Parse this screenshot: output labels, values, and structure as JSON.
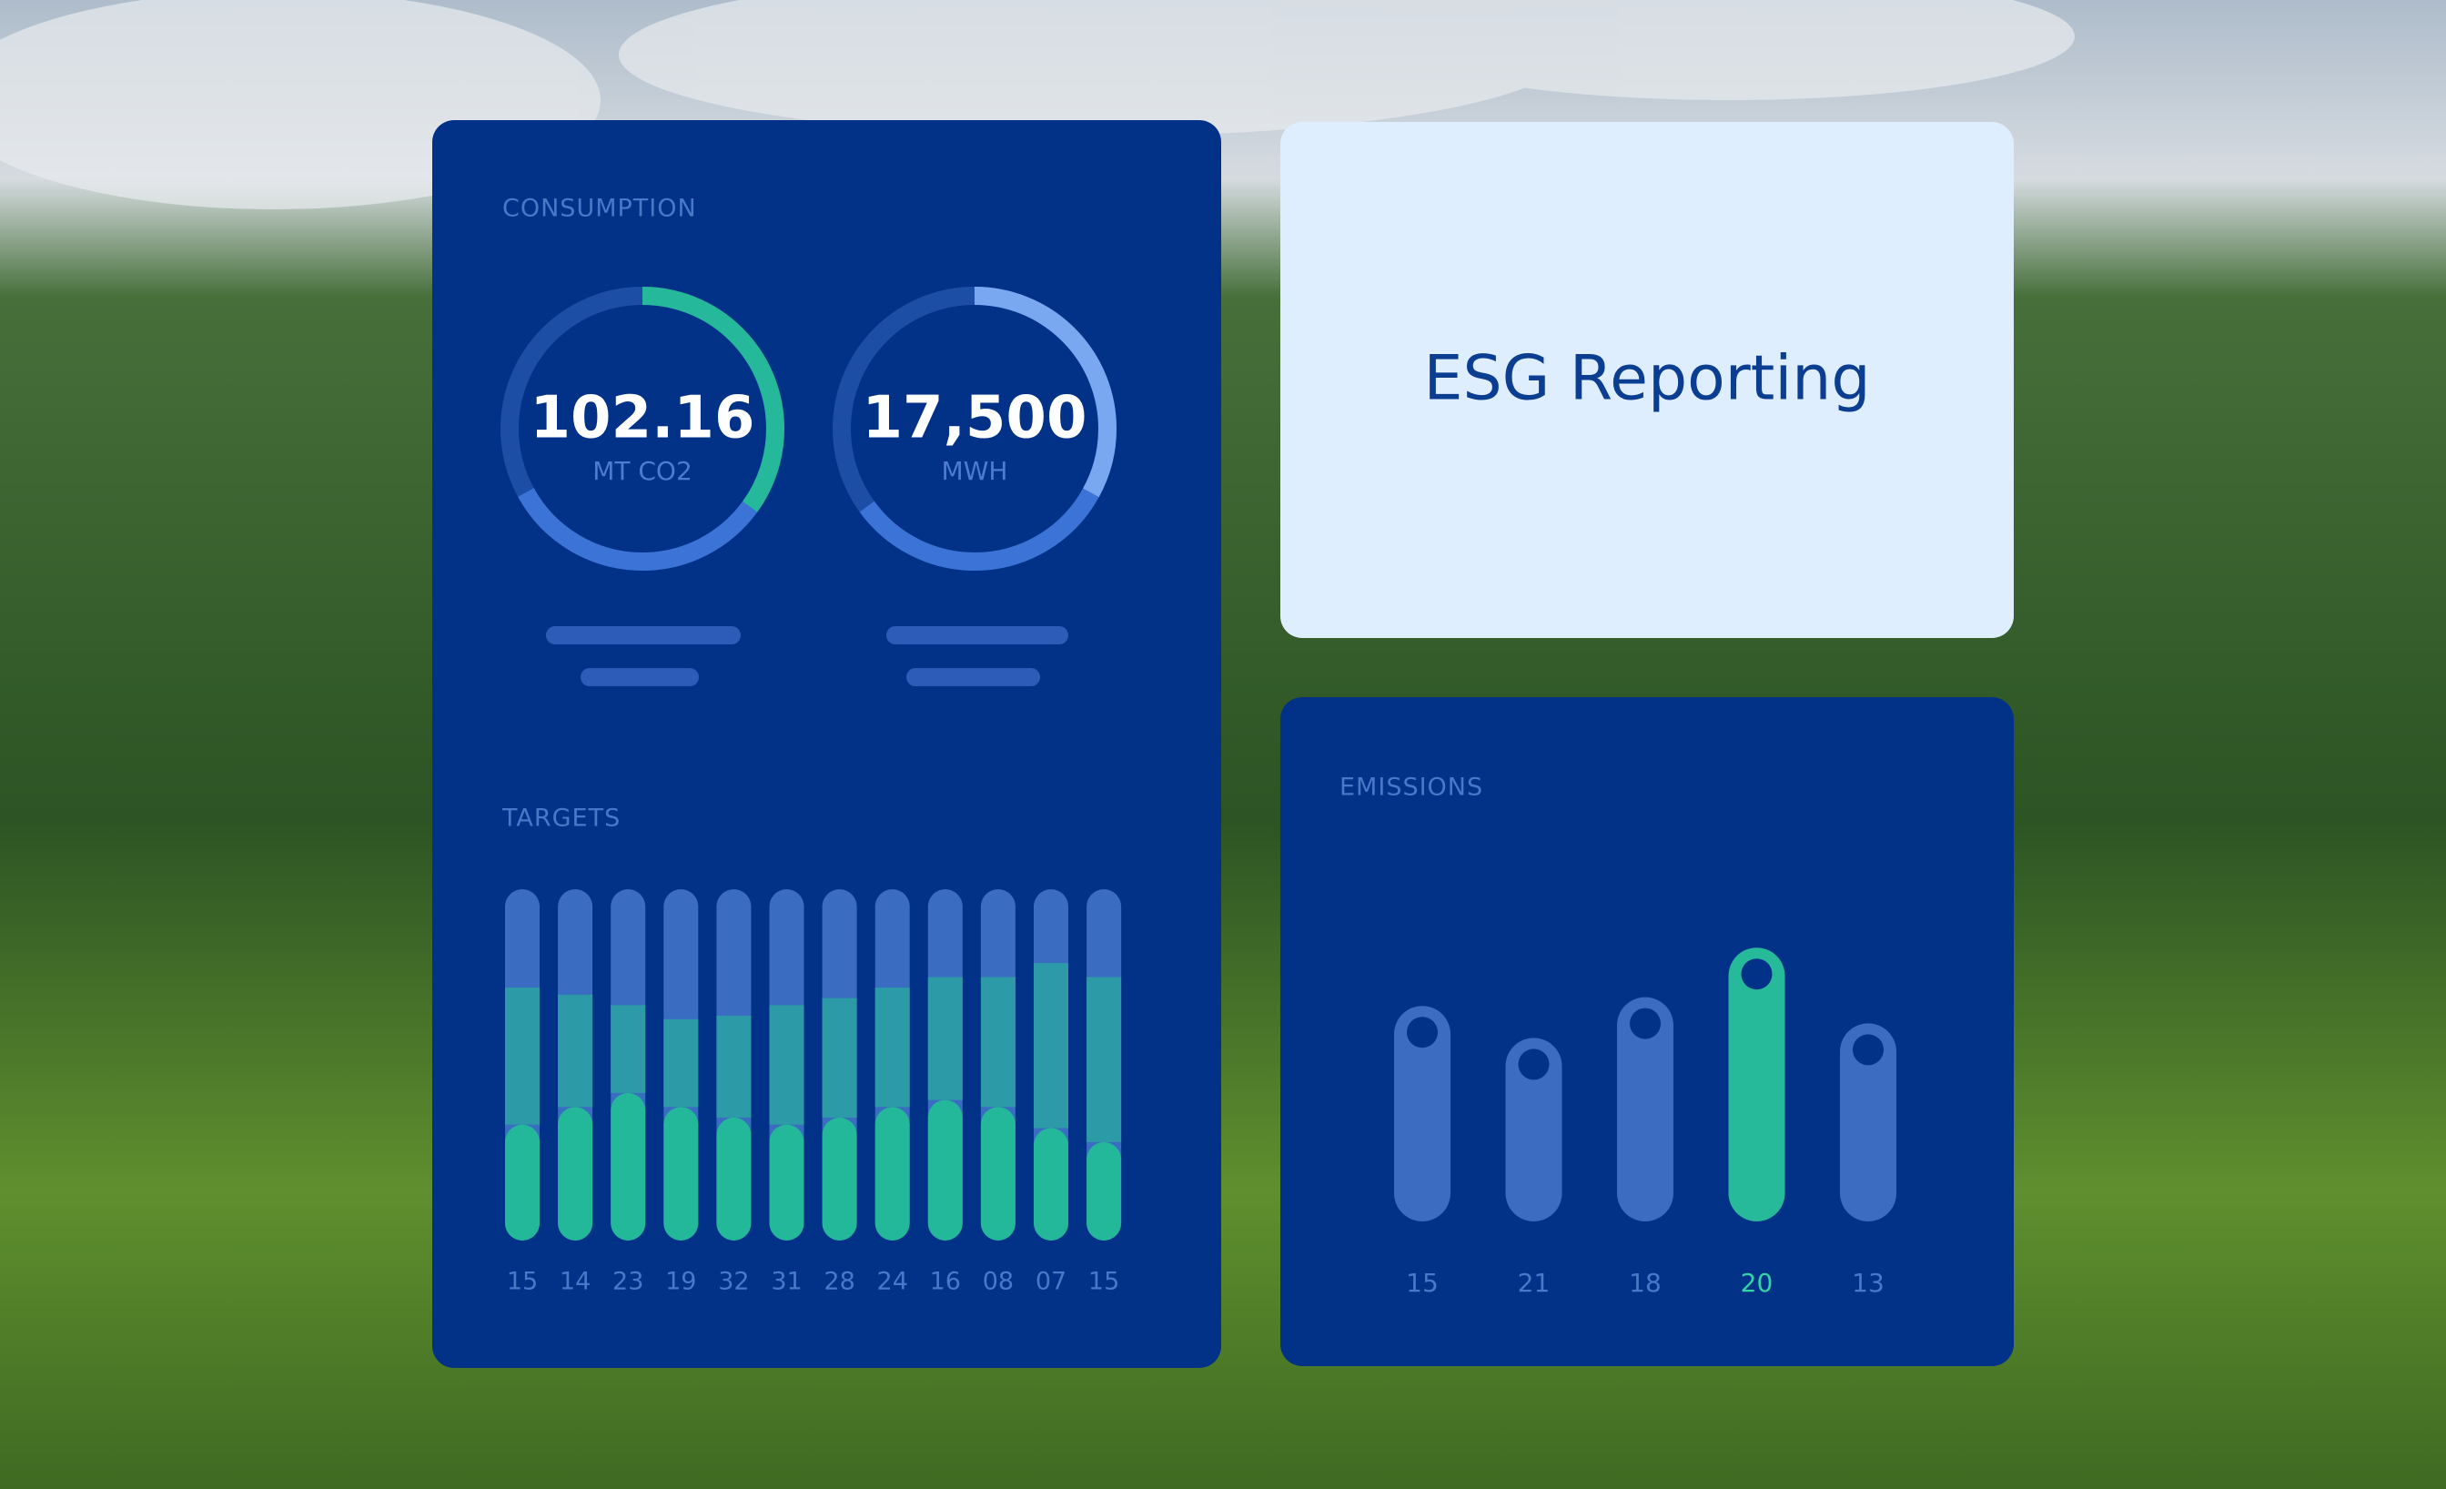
{
  "consumption": {
    "title": "CONSUMPTION",
    "range": [
      0,
      100
    ],
    "track_color": "#1c4ea6",
    "gauges": [
      {
        "value": "102.16",
        "unit": "MT CO2",
        "segments": [
          {
            "color": "#25b89b",
            "value": 35
          },
          {
            "color": "#3b73d6",
            "value": 32
          }
        ]
      },
      {
        "value": "17,500",
        "unit": "MWH",
        "segments": [
          {
            "color": "#7aa8f0",
            "value": 33
          },
          {
            "color": "#3b73d6",
            "value": 32
          }
        ]
      }
    ]
  },
  "targets": {
    "title": "TARGETS",
    "ylim": [
      0,
      100
    ],
    "track_color": "#3a6cc2",
    "categories": [
      "15",
      "14",
      "23",
      "19",
      "32",
      "31",
      "28",
      "24",
      "16",
      "08",
      "07",
      "15"
    ],
    "series": [
      {
        "color": "#22b899",
        "values": [
          33,
          38,
          42,
          38,
          35,
          33,
          35,
          38,
          40,
          38,
          32,
          28
        ]
      },
      {
        "color": "#2c9ba7",
        "values": [
          39,
          32,
          25,
          25,
          29,
          34,
          34,
          34,
          35,
          37,
          47,
          47
        ]
      }
    ]
  },
  "brand": {
    "title": "ESG Reporting"
  },
  "emissions": {
    "title": "EMISSIONS",
    "ylim": [
      0,
      100
    ],
    "color": "#3b6cc2",
    "highlight_color": "#26b99a",
    "highlight_index": 3,
    "label_color": "#4a78c8",
    "highlight_label_color": "#34d3a5",
    "categories": [
      "15",
      "21",
      "18",
      "20",
      "13"
    ],
    "values": [
      74,
      63,
      77,
      94,
      68
    ]
  }
}
